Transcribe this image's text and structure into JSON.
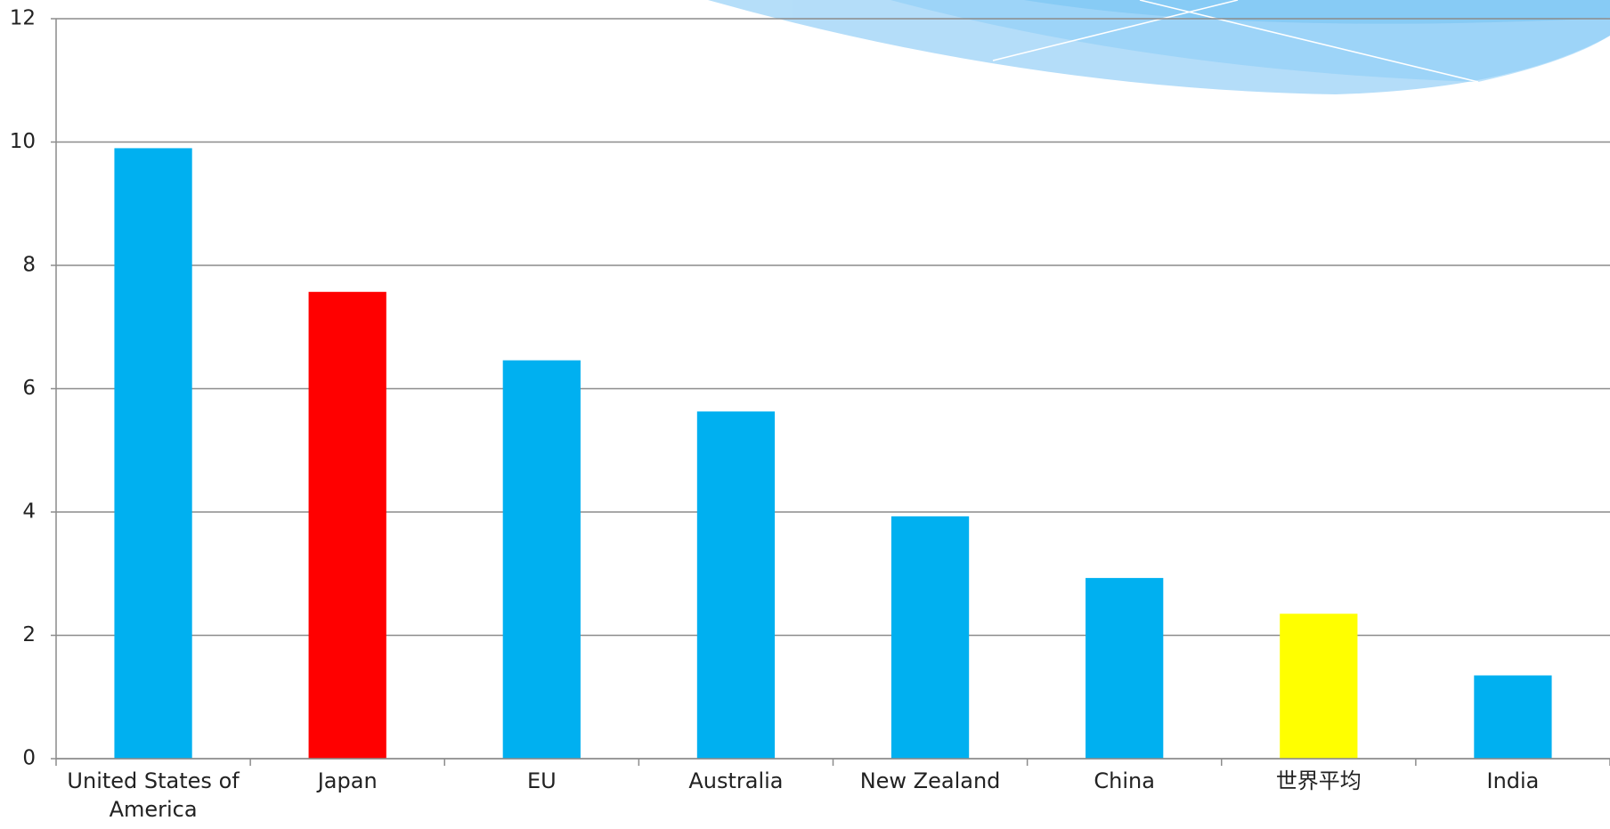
{
  "chart_data": {
    "type": "bar",
    "categories": [
      "United States of America",
      "Japan",
      "EU",
      "Australia",
      "New Zealand",
      "China",
      "世界平均",
      "India"
    ],
    "values": [
      9.9,
      7.57,
      6.46,
      5.63,
      3.93,
      2.93,
      2.35,
      1.35
    ],
    "colors": [
      "#00b0f0",
      "#ff0000",
      "#00b0f0",
      "#00b0f0",
      "#00b0f0",
      "#00b0f0",
      "#ffff00",
      "#00b0f0"
    ],
    "ylim": [
      0,
      12
    ],
    "yticks": [
      0,
      2,
      4,
      6,
      8,
      10,
      12
    ],
    "grid": true
  }
}
